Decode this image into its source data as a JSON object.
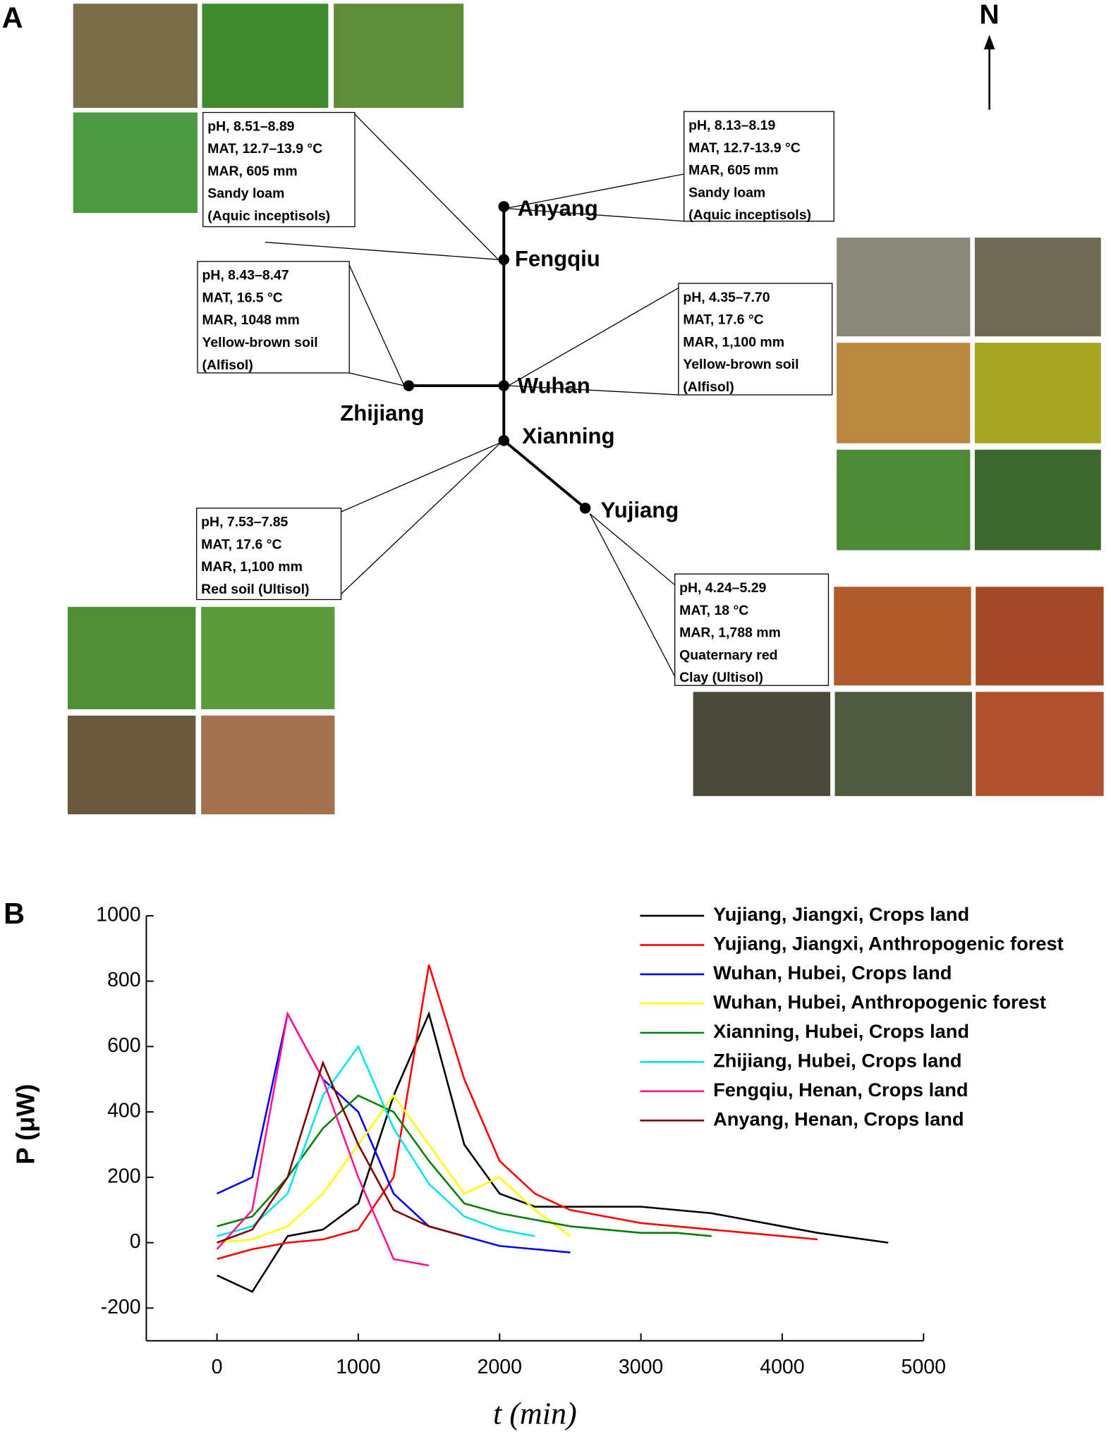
{
  "panel_a": {
    "label": "A",
    "north": "N",
    "sites": [
      {
        "name": "Anyang",
        "info": [
          "pH, 8.13–8.19",
          "MAT, 12.7-13.9 °C",
          "MAR, 605 mm",
          "Sandy loam",
          "(Aquic inceptisols)"
        ]
      },
      {
        "name": "Fengqiu",
        "info": [
          "pH, 8.51–8.89",
          "MAT, 12.7–13.9 °C",
          "MAR, 605 mm",
          "Sandy loam",
          "(Aquic inceptisols)"
        ]
      },
      {
        "name": "Zhijiang",
        "info": [
          "pH, 8.43–8.47",
          "MAT, 16.5 °C",
          "MAR,  1048 mm",
          "Yellow-brown soil",
          "(Alfisol)"
        ]
      },
      {
        "name": "Wuhan",
        "info": [
          "pH, 4.35–7.70",
          "MAT, 17.6 °C",
          "MAR, 1,100 mm",
          "Yellow-brown soil",
          "(Alfisol)"
        ]
      },
      {
        "name": "Xianning",
        "info": [
          "pH, 7.53–7.85",
          "MAT, 17.6 °C",
          "MAR, 1,100 mm",
          "Red soil (Ultisol)"
        ]
      },
      {
        "name": "Yujiang",
        "info": [
          "pH, 4.24–5.29",
          "MAT, 18 °C",
          "MAR, 1,788 mm",
          "Quaternary red",
          "Clay (Ultisol)"
        ]
      }
    ]
  },
  "chart_data": {
    "type": "line",
    "panel_label": "B",
    "x_label": "t (min)",
    "y_label": "P (μW)",
    "x": [
      0,
      250,
      500,
      750,
      1000,
      1250,
      1500,
      1750,
      2000,
      2250,
      2500,
      2750,
      3000,
      3250,
      3500,
      3750,
      4000,
      4250,
      4500,
      4750
    ],
    "series": [
      {
        "name": "Yujiang, Jiangxi, Crops land",
        "color": "#000000",
        "values": [
          -100,
          -150,
          20,
          40,
          120,
          450,
          700,
          300,
          150,
          110,
          110,
          110,
          110,
          100,
          90,
          70,
          50,
          30,
          15,
          0
        ]
      },
      {
        "name": "Yujiang, Jiangxi, Anthropogenic forest",
        "color": "#ff0000",
        "values": [
          -50,
          -20,
          0,
          10,
          40,
          200,
          850,
          500,
          250,
          150,
          100,
          80,
          60,
          50,
          40,
          30,
          20,
          10,
          null,
          null
        ]
      },
      {
        "name": "Wuhan, Hubei, Crops land",
        "color": "#0000ff",
        "values": [
          150,
          200,
          700,
          500,
          400,
          150,
          50,
          20,
          -10,
          -20,
          -30,
          null,
          null,
          null,
          null,
          null,
          null,
          null,
          null,
          null
        ]
      },
      {
        "name": "Wuhan, Hubei, Anthropogenic forest",
        "color": "#ffff00",
        "values": [
          0,
          10,
          50,
          150,
          300,
          450,
          300,
          150,
          200,
          100,
          20,
          null,
          null,
          null,
          null,
          null,
          null,
          null,
          null,
          null
        ]
      },
      {
        "name": "Xianning, Hubei, Crops land",
        "color": "#008000",
        "values": [
          50,
          80,
          200,
          350,
          450,
          400,
          250,
          120,
          90,
          70,
          50,
          40,
          30,
          30,
          20,
          null,
          null,
          null,
          null,
          null
        ]
      },
      {
        "name": "Zhijiang, Hubei, Crops land",
        "color": "#00e5ee",
        "values": [
          20,
          50,
          150,
          450,
          600,
          350,
          180,
          80,
          40,
          20,
          null,
          null,
          null,
          null,
          null,
          null,
          null,
          null,
          null,
          null
        ]
      },
      {
        "name": "Fengqiu, Henan, Crops land",
        "color": "#ff1493",
        "values": [
          -20,
          100,
          700,
          500,
          200,
          -50,
          -70,
          null,
          null,
          null,
          null,
          null,
          null,
          null,
          null,
          null,
          null,
          null,
          null,
          null
        ]
      },
      {
        "name": "Anyang, Henan, Crops land",
        "color": "#800000",
        "values": [
          0,
          40,
          200,
          550,
          300,
          100,
          50,
          20,
          null,
          null,
          null,
          null,
          null,
          null,
          null,
          null,
          null,
          null,
          null,
          null
        ]
      }
    ],
    "xlim": [
      -500,
      5000
    ],
    "ylim": [
      -300,
      1000
    ],
    "xticks": [
      0,
      1000,
      2000,
      3000,
      4000,
      5000
    ],
    "yticks": [
      -200,
      0,
      200,
      400,
      600,
      800,
      1000
    ]
  }
}
